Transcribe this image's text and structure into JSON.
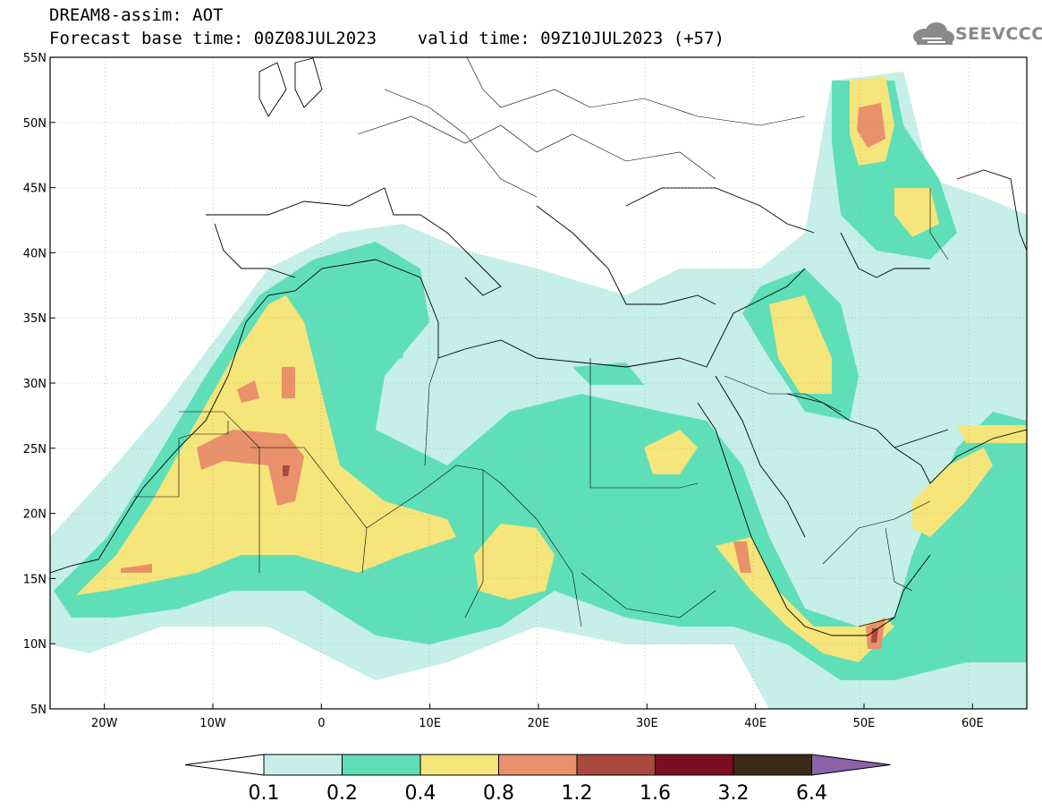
{
  "header": {
    "line1": "DREAM8-assim: AOT",
    "line2": "Forecast base time: 00Z08JUL2023    valid time: 09Z10JUL2023 (+57)",
    "logo_text": "SEEVCCC"
  },
  "map": {
    "projection": "lat-lon",
    "lon_range": [
      -25,
      65
    ],
    "lat_range": [
      5,
      55
    ],
    "lat_ticks": [
      "55N",
      "50N",
      "45N",
      "40N",
      "35N",
      "30N",
      "25N",
      "20N",
      "15N",
      "10N",
      "5N"
    ],
    "lon_ticks": [
      "20W",
      "10W",
      "0",
      "10E",
      "20E",
      "30E",
      "40E",
      "50E",
      "60E"
    ],
    "grid": true,
    "variable": "AOT",
    "coastlines_and_borders": true
  },
  "colorbar": {
    "labels": [
      "0.1",
      "0.2",
      "0.4",
      "0.8",
      "1.2",
      "1.6",
      "3.2",
      "6.4"
    ],
    "colors": [
      "#ffffff",
      "#c5efe8",
      "#5fdfb8",
      "#f5e57a",
      "#e8916a",
      "#a84a3e",
      "#7a0f22",
      "#3b2a17",
      "#8a63a8"
    ]
  },
  "colors": {
    "low": "#c5efe8",
    "mid": "#5fdfb8",
    "high": "#f5e57a",
    "orange": "#e8916a",
    "red": "#a84a3e"
  }
}
